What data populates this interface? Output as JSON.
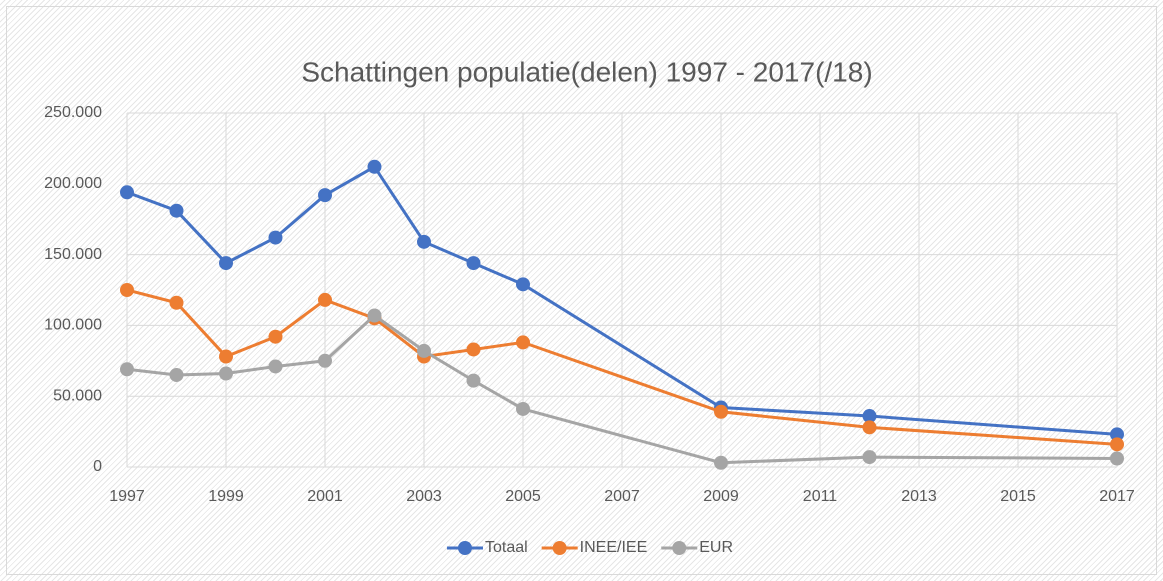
{
  "chart_data": {
    "type": "line",
    "title": "Schattingen populatie(delen) 1997 - 2017(/18)",
    "x": [
      1997,
      1998,
      1999,
      2000,
      2001,
      2002,
      2003,
      2004,
      2005,
      2009,
      2012,
      2017
    ],
    "series": [
      {
        "name": "Totaal",
        "color": "#4472c4",
        "values": [
          194000,
          181000,
          144000,
          162000,
          192000,
          212000,
          159000,
          144000,
          129000,
          42000,
          36000,
          23000
        ]
      },
      {
        "name": "INEE/IEE",
        "color": "#ed7d31",
        "values": [
          125000,
          116000,
          78000,
          92000,
          118000,
          105000,
          78000,
          83000,
          88000,
          39000,
          28000,
          16000
        ]
      },
      {
        "name": "EUR",
        "color": "#a5a5a5",
        "values": [
          69000,
          65000,
          66000,
          71000,
          75000,
          107000,
          82000,
          61000,
          41000,
          3000,
          7000,
          6000
        ]
      }
    ],
    "xlim": [
      1997,
      2017
    ],
    "xticks": [
      1997,
      1999,
      2001,
      2003,
      2005,
      2007,
      2009,
      2011,
      2013,
      2015,
      2017
    ],
    "ylim": [
      0,
      250000
    ],
    "yticks": [
      0,
      {
        "value": 50000,
        "label": "50.000"
      },
      {
        "value": 100000,
        "label": "100.000"
      },
      {
        "value": 150000,
        "label": "150.000"
      },
      {
        "value": 200000,
        "label": "200.000"
      },
      {
        "value": 250000,
        "label": "250.000"
      }
    ],
    "grid": true,
    "legend": "bottom"
  }
}
